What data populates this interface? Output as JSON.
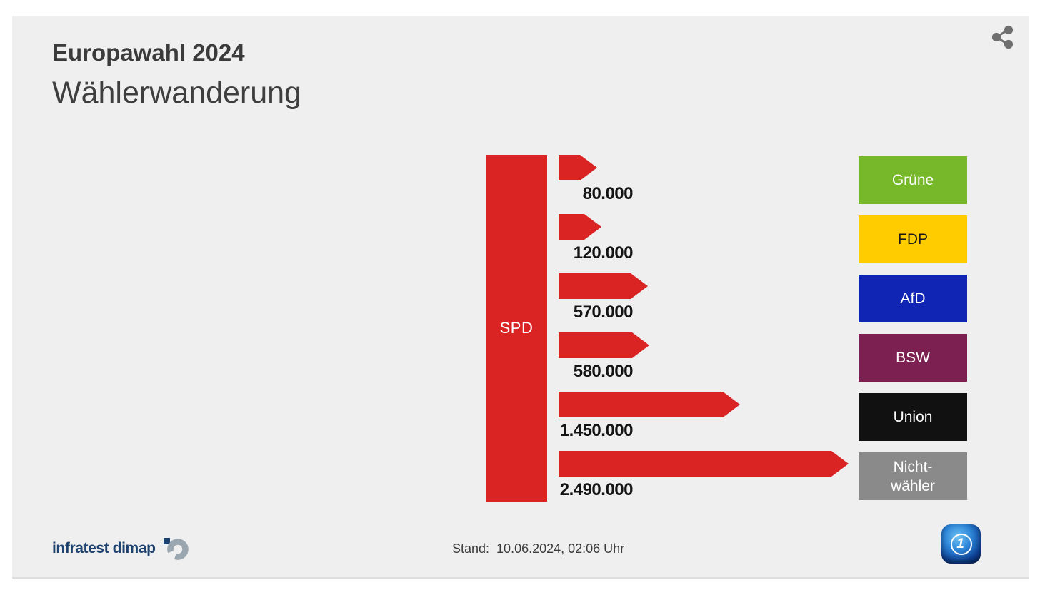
{
  "header": {
    "kicker": "Europawahl 2024",
    "title": "Wählerwanderung"
  },
  "icons": {
    "share_icon": "share-dots",
    "infratest_mark": "broken-ring-with-square",
    "ard_logo": "das-erste-globe-1"
  },
  "chart_data": {
    "type": "bar",
    "variant": "voter-migration-flow",
    "kicker": "Europawahl 2024",
    "title": "Wählerwanderung",
    "source": {
      "label": "SPD",
      "color": "#da2323",
      "text_color": "#ffffff"
    },
    "arrow_color": "#da2323",
    "flows": [
      {
        "target": "Grüne",
        "target_display": "Grüne",
        "value": 80000,
        "value_label": "80.000",
        "color": "#76b82a",
        "text_color": "#ffffff"
      },
      {
        "target": "FDP",
        "target_display": "FDP",
        "value": 120000,
        "value_label": "120.000",
        "color": "#ffcc00",
        "text_color": "#1a1a1a"
      },
      {
        "target": "AfD",
        "target_display": "AfD",
        "value": 570000,
        "value_label": "570.000",
        "color": "#1125b5",
        "text_color": "#ffffff"
      },
      {
        "target": "BSW",
        "target_display": "BSW",
        "value": 580000,
        "value_label": "580.000",
        "color": "#7c1f51",
        "text_color": "#ffffff"
      },
      {
        "target": "Union",
        "target_display": "Union",
        "value": 1450000,
        "value_label": "1.450.000",
        "color": "#111111",
        "text_color": "#ffffff"
      },
      {
        "target": "Nichtwähler",
        "target_display": "Nicht-\nwähler",
        "value": 2490000,
        "value_label": "2.490.000",
        "color": "#8a8a8a",
        "text_color": "#ffffff"
      }
    ],
    "layout": {
      "legend_position": "right",
      "grid": false,
      "note": "arrow length proportional to value"
    }
  },
  "footer": {
    "source_logo_text": "infratest dimap",
    "stand_label": "Stand:",
    "stand_value": "10.06.2024, 02:06 Uhr"
  }
}
